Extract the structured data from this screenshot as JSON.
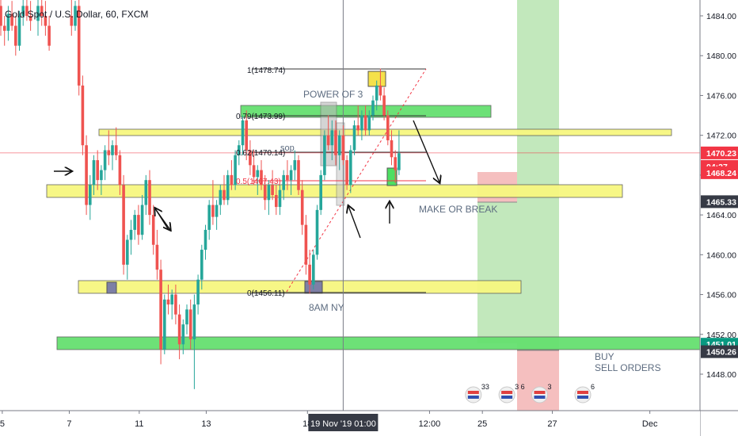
{
  "header": {
    "symbol": "Gold Spot / U.S. Dollar, 60, FXCM"
  },
  "chart_data": {
    "type": "candlestick",
    "title": "Gold Spot / U.S. Dollar, 60, FXCM",
    "ylim": [
      1446.2,
      1485.8
    ],
    "y_ticks": [
      1448,
      1452,
      1456,
      1460,
      1464,
      1468,
      1472,
      1476,
      1480,
      1484
    ],
    "y_tick_labels": [
      "1448.00",
      "1452.00",
      "1456.00",
      "1460.00",
      "1464.00",
      "1468.00",
      "1472.00",
      "1476.00",
      "1480.00",
      "1484.00"
    ],
    "x_ticks": [
      {
        "label": "5",
        "pos": 0.2
      },
      {
        "label": "7",
        "pos": 9.2
      },
      {
        "label": "11",
        "pos": 18.6
      },
      {
        "label": "13",
        "pos": 27.6
      },
      {
        "label": "18",
        "pos": 41.2
      },
      {
        "label": "12:00",
        "pos": 57.6
      },
      {
        "label": "25",
        "pos": 64.7
      },
      {
        "label": "27",
        "pos": 74.1
      },
      {
        "label": "Dec",
        "pos": 87.2
      }
    ],
    "crosshair": {
      "x_label": "19 Nov '19   01:00",
      "pos": 46.0
    },
    "price_labels": [
      {
        "value": 1470.23,
        "text": "1470.23",
        "bg": "#f23645",
        "fg": "#ffffff"
      },
      {
        "value": 1468.87,
        "text": "04:27",
        "bg": "#f23645",
        "fg": "#ffffff"
      },
      {
        "value": 1468.24,
        "text": "1468.24",
        "bg": "#f23645",
        "fg": "#ffffff"
      },
      {
        "value": 1465.33,
        "text": "1465.33",
        "bg": "#363a45",
        "fg": "#ffffff"
      },
      {
        "value": 1451.01,
        "text": "1451.01",
        "bg": "#089981",
        "fg": "#ffffff"
      },
      {
        "value": 1450.26,
        "text": "1450.26",
        "bg": "#363a45",
        "fg": "#ffffff"
      }
    ],
    "current_price": 1470.23,
    "candles": [
      {
        "t": 0,
        "o": 1485.0,
        "h": 1485.8,
        "l": 1482.0,
        "c": 1483.0
      },
      {
        "t": 0.5,
        "o": 1483.0,
        "h": 1484.0,
        "l": 1481.0,
        "c": 1482.5
      },
      {
        "t": 1,
        "o": 1482.5,
        "h": 1485.0,
        "l": 1481.5,
        "c": 1484.2
      },
      {
        "t": 1.5,
        "o": 1484.2,
        "h": 1485.5,
        "l": 1482.5,
        "c": 1483.0
      },
      {
        "t": 2,
        "o": 1483.0,
        "h": 1484.0,
        "l": 1480.0,
        "c": 1481.0
      },
      {
        "t": 2.5,
        "o": 1481.0,
        "h": 1484.5,
        "l": 1480.5,
        "c": 1484.0
      },
      {
        "t": 3,
        "o": 1484.0,
        "h": 1485.8,
        "l": 1483.0,
        "c": 1485.0
      },
      {
        "t": 3.5,
        "o": 1485.0,
        "h": 1485.8,
        "l": 1483.5,
        "c": 1484.0
      },
      {
        "t": 4,
        "o": 1484.0,
        "h": 1485.5,
        "l": 1482.5,
        "c": 1483.5
      },
      {
        "t": 5,
        "o": 1483.5,
        "h": 1485.8,
        "l": 1482.0,
        "c": 1485.0
      },
      {
        "t": 5.5,
        "o": 1485.0,
        "h": 1485.8,
        "l": 1483.0,
        "c": 1484.0
      },
      {
        "t": 6,
        "o": 1484.0,
        "h": 1485.5,
        "l": 1482.0,
        "c": 1483.0
      },
      {
        "t": 6.5,
        "o": 1483.0,
        "h": 1484.0,
        "l": 1480.5,
        "c": 1481.0
      },
      {
        "t": 9.5,
        "o": 1484.0,
        "h": 1485.8,
        "l": 1482.0,
        "c": 1483.0
      },
      {
        "t": 10,
        "o": 1483.0,
        "h": 1485.5,
        "l": 1482.5,
        "c": 1485.0
      },
      {
        "t": 10.5,
        "o": 1485.0,
        "h": 1485.8,
        "l": 1476.0,
        "c": 1477.0
      },
      {
        "t": 11,
        "o": 1477.0,
        "h": 1478.0,
        "l": 1470.0,
        "c": 1471.0
      },
      {
        "t": 11.5,
        "o": 1471.0,
        "h": 1472.0,
        "l": 1464.0,
        "c": 1465.0
      },
      {
        "t": 12,
        "o": 1465.0,
        "h": 1468.0,
        "l": 1463.5,
        "c": 1467.0
      },
      {
        "t": 12.5,
        "o": 1467.0,
        "h": 1470.0,
        "l": 1466.0,
        "c": 1469.5
      },
      {
        "t": 13,
        "o": 1469.5,
        "h": 1470.5,
        "l": 1466.5,
        "c": 1467.5
      },
      {
        "t": 13.5,
        "o": 1467.5,
        "h": 1469.0,
        "l": 1466.0,
        "c": 1468.5
      },
      {
        "t": 14,
        "o": 1468.5,
        "h": 1471.0,
        "l": 1467.5,
        "c": 1470.5
      },
      {
        "t": 14.5,
        "o": 1470.5,
        "h": 1472.5,
        "l": 1469.0,
        "c": 1470.0
      },
      {
        "t": 15,
        "o": 1470.0,
        "h": 1471.5,
        "l": 1468.5,
        "c": 1471.0
      },
      {
        "t": 15.5,
        "o": 1471.0,
        "h": 1472.8,
        "l": 1469.5,
        "c": 1470.0
      },
      {
        "t": 16,
        "o": 1470.0,
        "h": 1470.5,
        "l": 1466.0,
        "c": 1467.0
      },
      {
        "t": 16.5,
        "o": 1467.0,
        "h": 1468.0,
        "l": 1458.0,
        "c": 1459.0
      },
      {
        "t": 17,
        "o": 1459.0,
        "h": 1462.0,
        "l": 1457.5,
        "c": 1461.5
      },
      {
        "t": 17.5,
        "o": 1461.5,
        "h": 1463.5,
        "l": 1460.0,
        "c": 1462.5
      },
      {
        "t": 18,
        "o": 1462.5,
        "h": 1464.5,
        "l": 1461.5,
        "c": 1464.0
      },
      {
        "t": 18.5,
        "o": 1464.0,
        "h": 1465.0,
        "l": 1461.0,
        "c": 1462.0
      },
      {
        "t": 19,
        "o": 1462.0,
        "h": 1466.0,
        "l": 1461.5,
        "c": 1465.0
      },
      {
        "t": 19.5,
        "o": 1465.0,
        "h": 1468.0,
        "l": 1464.0,
        "c": 1467.5
      },
      {
        "t": 20,
        "o": 1467.5,
        "h": 1468.5,
        "l": 1463.0,
        "c": 1464.0
      },
      {
        "t": 20.5,
        "o": 1464.0,
        "h": 1465.0,
        "l": 1460.0,
        "c": 1461.0
      },
      {
        "t": 21,
        "o": 1461.0,
        "h": 1462.5,
        "l": 1457.5,
        "c": 1458.5
      },
      {
        "t": 21.5,
        "o": 1458.5,
        "h": 1459.5,
        "l": 1449.0,
        "c": 1450.5
      },
      {
        "t": 22,
        "o": 1450.5,
        "h": 1456.0,
        "l": 1450.0,
        "c": 1455.5
      },
      {
        "t": 22.5,
        "o": 1455.5,
        "h": 1457.0,
        "l": 1454.0,
        "c": 1455.0
      },
      {
        "t": 23,
        "o": 1455.0,
        "h": 1456.5,
        "l": 1453.5,
        "c": 1456.0
      },
      {
        "t": 23.5,
        "o": 1456.0,
        "h": 1457.0,
        "l": 1453.0,
        "c": 1454.0
      },
      {
        "t": 24,
        "o": 1454.0,
        "h": 1455.0,
        "l": 1449.5,
        "c": 1451.0
      },
      {
        "t": 24.5,
        "o": 1451.0,
        "h": 1453.5,
        "l": 1450.0,
        "c": 1453.0
      },
      {
        "t": 25,
        "o": 1453.0,
        "h": 1455.0,
        "l": 1452.0,
        "c": 1454.5
      },
      {
        "t": 25.5,
        "o": 1454.5,
        "h": 1455.5,
        "l": 1450.5,
        "c": 1451.5
      },
      {
        "t": 26,
        "o": 1451.5,
        "h": 1456.0,
        "l": 1446.5,
        "c": 1455.0
      },
      {
        "t": 26.5,
        "o": 1455.0,
        "h": 1458.0,
        "l": 1454.0,
        "c": 1457.5
      },
      {
        "t": 27,
        "o": 1457.5,
        "h": 1461.0,
        "l": 1456.5,
        "c": 1460.5
      },
      {
        "t": 27.5,
        "o": 1460.5,
        "h": 1463.0,
        "l": 1459.5,
        "c": 1462.5
      },
      {
        "t": 28,
        "o": 1462.5,
        "h": 1465.5,
        "l": 1461.5,
        "c": 1465.0
      },
      {
        "t": 28.5,
        "o": 1465.0,
        "h": 1467.5,
        "l": 1463.0,
        "c": 1463.8
      },
      {
        "t": 29,
        "o": 1463.8,
        "h": 1465.5,
        "l": 1462.5,
        "c": 1465.0
      },
      {
        "t": 29.5,
        "o": 1465.0,
        "h": 1467.0,
        "l": 1464.0,
        "c": 1466.5
      },
      {
        "t": 30,
        "o": 1466.5,
        "h": 1468.0,
        "l": 1465.0,
        "c": 1465.5
      },
      {
        "t": 30.5,
        "o": 1465.5,
        "h": 1468.5,
        "l": 1465.0,
        "c": 1468.0
      },
      {
        "t": 31,
        "o": 1468.0,
        "h": 1469.5,
        "l": 1466.5,
        "c": 1467.0
      },
      {
        "t": 31.5,
        "o": 1467.0,
        "h": 1470.5,
        "l": 1466.5,
        "c": 1470.0
      },
      {
        "t": 32,
        "o": 1470.0,
        "h": 1471.5,
        "l": 1469.0,
        "c": 1471.0
      },
      {
        "t": 32.5,
        "o": 1471.0,
        "h": 1474.0,
        "l": 1470.0,
        "c": 1473.5
      },
      {
        "t": 33,
        "o": 1473.5,
        "h": 1474.5,
        "l": 1469.5,
        "c": 1470.5
      },
      {
        "t": 33.5,
        "o": 1470.5,
        "h": 1471.5,
        "l": 1468.0,
        "c": 1469.0
      },
      {
        "t": 34,
        "o": 1469.0,
        "h": 1470.5,
        "l": 1467.0,
        "c": 1467.8
      },
      {
        "t": 34.5,
        "o": 1467.8,
        "h": 1469.0,
        "l": 1466.0,
        "c": 1468.5
      },
      {
        "t": 35,
        "o": 1468.5,
        "h": 1469.5,
        "l": 1466.5,
        "c": 1467.0
      },
      {
        "t": 35.5,
        "o": 1467.0,
        "h": 1468.0,
        "l": 1464.5,
        "c": 1465.5
      },
      {
        "t": 36,
        "o": 1465.5,
        "h": 1467.5,
        "l": 1464.0,
        "c": 1467.0
      },
      {
        "t": 36.5,
        "o": 1467.0,
        "h": 1468.5,
        "l": 1465.5,
        "c": 1466.0
      },
      {
        "t": 37,
        "o": 1466.0,
        "h": 1467.0,
        "l": 1464.0,
        "c": 1464.8
      },
      {
        "t": 37.5,
        "o": 1464.8,
        "h": 1467.0,
        "l": 1464.0,
        "c": 1466.5
      },
      {
        "t": 38,
        "o": 1466.5,
        "h": 1468.5,
        "l": 1465.5,
        "c": 1468.0
      },
      {
        "t": 38.5,
        "o": 1468.0,
        "h": 1469.5,
        "l": 1466.5,
        "c": 1467.5
      },
      {
        "t": 39,
        "o": 1467.5,
        "h": 1469.0,
        "l": 1466.0,
        "c": 1468.5
      },
      {
        "t": 39.5,
        "o": 1468.5,
        "h": 1470.5,
        "l": 1467.5,
        "c": 1469.5
      },
      {
        "t": 40,
        "o": 1469.5,
        "h": 1470.0,
        "l": 1466.0,
        "c": 1466.5
      },
      {
        "t": 40.5,
        "o": 1466.5,
        "h": 1467.5,
        "l": 1462.0,
        "c": 1463.0
      },
      {
        "t": 41,
        "o": 1463.0,
        "h": 1464.0,
        "l": 1458.0,
        "c": 1459.0
      },
      {
        "t": 41.5,
        "o": 1459.0,
        "h": 1460.5,
        "l": 1456.1,
        "c": 1457.0
      },
      {
        "t": 42,
        "o": 1457.0,
        "h": 1460.5,
        "l": 1456.5,
        "c": 1460.0
      },
      {
        "t": 42.5,
        "o": 1460.0,
        "h": 1465.0,
        "l": 1459.5,
        "c": 1464.5
      },
      {
        "t": 43,
        "o": 1464.5,
        "h": 1468.5,
        "l": 1464.0,
        "c": 1468.0
      },
      {
        "t": 43.5,
        "o": 1468.0,
        "h": 1472.5,
        "l": 1467.5,
        "c": 1472.0
      },
      {
        "t": 44,
        "o": 1472.0,
        "h": 1474.0,
        "l": 1470.5,
        "c": 1471.0
      },
      {
        "t": 44.5,
        "o": 1471.0,
        "h": 1473.5,
        "l": 1469.5,
        "c": 1472.5
      },
      {
        "t": 45,
        "o": 1472.5,
        "h": 1473.5,
        "l": 1469.0,
        "c": 1470.0
      },
      {
        "t": 45.5,
        "o": 1470.0,
        "h": 1472.5,
        "l": 1468.5,
        "c": 1472.0
      },
      {
        "t": 46,
        "o": 1472.0,
        "h": 1473.0,
        "l": 1469.0,
        "c": 1469.5
      },
      {
        "t": 46.5,
        "o": 1469.5,
        "h": 1470.0,
        "l": 1466.5,
        "c": 1467.0
      },
      {
        "t": 47,
        "o": 1467.0,
        "h": 1471.0,
        "l": 1466.2,
        "c": 1470.5
      },
      {
        "t": 47.5,
        "o": 1470.5,
        "h": 1473.5,
        "l": 1470.0,
        "c": 1473.0
      },
      {
        "t": 48,
        "o": 1473.0,
        "h": 1475.0,
        "l": 1472.0,
        "c": 1472.5
      },
      {
        "t": 48.5,
        "o": 1472.5,
        "h": 1474.5,
        "l": 1471.5,
        "c": 1474.0
      },
      {
        "t": 49,
        "o": 1474.0,
        "h": 1475.0,
        "l": 1472.0,
        "c": 1472.5
      },
      {
        "t": 49.5,
        "o": 1472.5,
        "h": 1474.5,
        "l": 1472.0,
        "c": 1474.0
      },
      {
        "t": 50,
        "o": 1474.0,
        "h": 1476.0,
        "l": 1473.5,
        "c": 1475.5
      },
      {
        "t": 50.5,
        "o": 1475.5,
        "h": 1477.5,
        "l": 1474.5,
        "c": 1477.0
      },
      {
        "t": 51,
        "o": 1477.0,
        "h": 1478.7,
        "l": 1475.5,
        "c": 1476.0
      },
      {
        "t": 51.5,
        "o": 1476.0,
        "h": 1476.8,
        "l": 1473.5,
        "c": 1474.0
      },
      {
        "t": 52,
        "o": 1474.0,
        "h": 1474.5,
        "l": 1471.0,
        "c": 1471.5
      },
      {
        "t": 52.5,
        "o": 1471.5,
        "h": 1472.5,
        "l": 1469.0,
        "c": 1469.8
      },
      {
        "t": 53,
        "o": 1469.8,
        "h": 1470.5,
        "l": 1467.2,
        "c": 1468.5
      },
      {
        "t": 53.5,
        "o": 1468.5,
        "h": 1472.5,
        "l": 1468.0,
        "c": 1470.2
      }
    ]
  },
  "annotations": {
    "fib_1": "1(1478.74)",
    "fib_079": "0.79(1473.99)",
    "fib_062": "0.62(1470.14)",
    "fib_05": "0.5(1467.43)",
    "fib_0": "0(1456.11)",
    "power_of_3": "POWER OF 3",
    "sop": "sop",
    "make_or_break": "MAKE OR BREAK",
    "ny": "8AM NY",
    "buy": "BUY",
    "sell_orders": "SELL ORDERS"
  },
  "event_icons": [
    {
      "pos": 60.3,
      "label": "33"
    },
    {
      "pos": 64.8,
      "label": "3 6"
    },
    {
      "pos": 69.2,
      "label": "3"
    },
    {
      "pos": 75.0,
      "label": "6 "
    }
  ],
  "colors": {
    "up": "#26a69a",
    "down": "#ef5350",
    "zone_yellow": "#f7f780",
    "zone_green": "#66e070",
    "profit": "#b7e4b0",
    "loss": "#f4b8b8",
    "price_line": "#f23645"
  }
}
